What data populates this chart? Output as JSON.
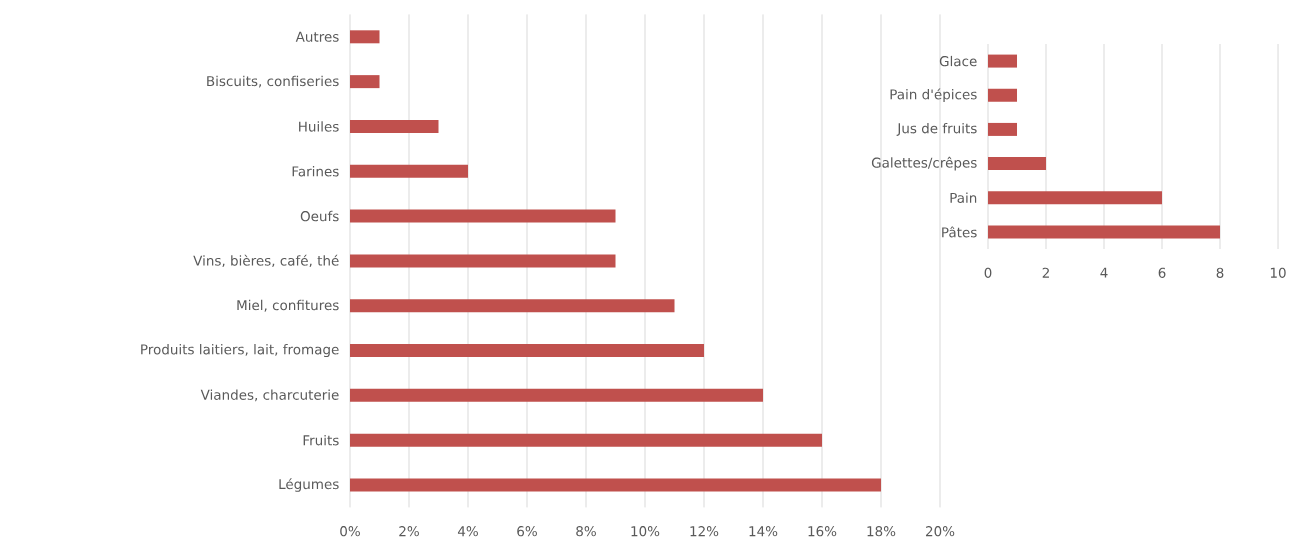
{
  "chart_data": [
    {
      "type": "bar",
      "orientation": "horizontal",
      "categories": [
        "Autres",
        "Biscuits, confiseries",
        "Huiles",
        "Farines",
        "Oeufs",
        "Vins, bières, café, thé",
        "Miel, confitures",
        "Produits laitiers, lait, fromage",
        "Viandes, charcuterie",
        "Fruits",
        "Légumes"
      ],
      "values": [
        1,
        1,
        3,
        4,
        9,
        9,
        11,
        12,
        14,
        16,
        18
      ],
      "color": "#c0504d",
      "xlim": [
        0,
        20
      ],
      "xticks": [
        {
          "value": 0,
          "label": "0%"
        },
        {
          "value": 2,
          "label": "2%"
        },
        {
          "value": 4,
          "label": "4%"
        },
        {
          "value": 6,
          "label": "6%"
        },
        {
          "value": 8,
          "label": "8%"
        },
        {
          "value": 10,
          "label": "10%"
        },
        {
          "value": 12,
          "label": "12%"
        },
        {
          "value": 14,
          "label": "14%"
        },
        {
          "value": 16,
          "label": "16%"
        },
        {
          "value": 18,
          "label": "18%"
        },
        {
          "value": 20,
          "label": "20%"
        }
      ],
      "grid": "x"
    },
    {
      "type": "bar",
      "orientation": "horizontal",
      "categories": [
        "Glace",
        "Pain d'épices",
        "Jus de fruits",
        "Galettes/crêpes",
        "Pain",
        "Pâtes"
      ],
      "values": [
        1,
        1,
        1,
        2,
        6,
        8
      ],
      "color": "#c0504d",
      "xlim": [
        0,
        10
      ],
      "xticks": [
        0,
        2,
        4,
        6,
        8,
        10
      ],
      "grid": "x"
    }
  ]
}
